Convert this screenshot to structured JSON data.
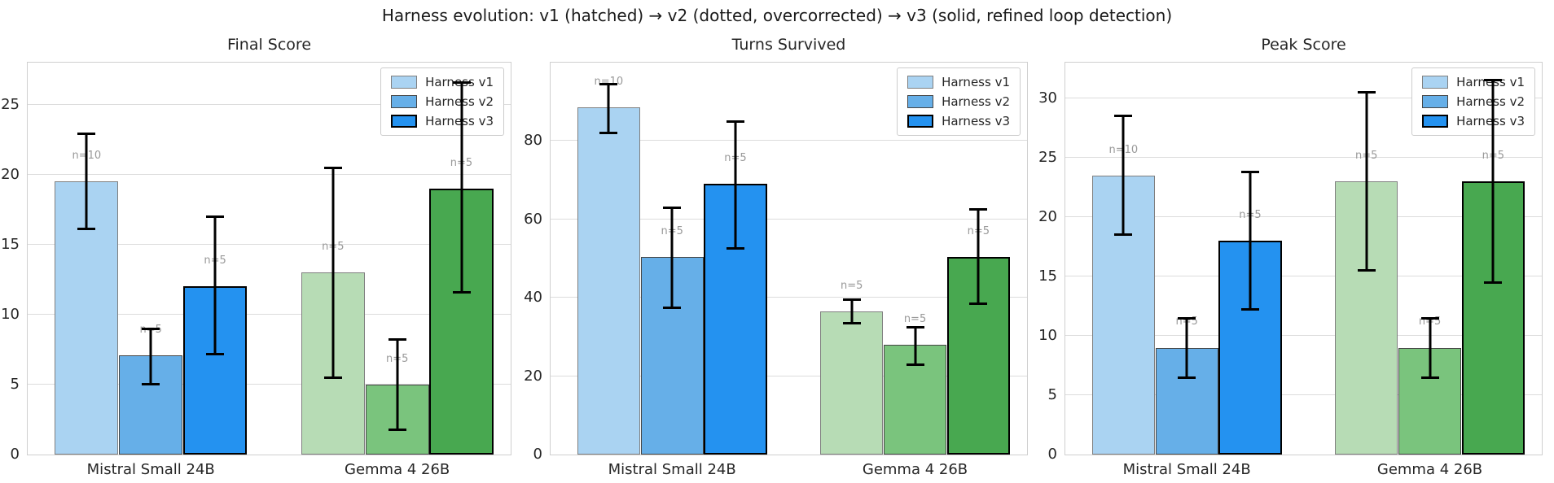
{
  "figure": {
    "title": "Harness evolution: v1 (hatched) → v2 (dotted, overcorrected) → v3 (solid, refined loop detection)",
    "background": "#ffffff"
  },
  "legend": {
    "labels": [
      "Harness v1",
      "Harness v2",
      "Harness v3"
    ],
    "position": "upper right"
  },
  "style": {
    "mistral_fills": [
      "#aad3f2",
      "#66afe8",
      "#2492f0"
    ],
    "gemma_fills": [
      "#b7dcb5",
      "#7ac47d",
      "#48a850"
    ],
    "hatch_colors": [
      "#6b7f93",
      "#7e947c"
    ],
    "dot_color": "#1a1a1a",
    "edge_colors": [
      "#7f7f7f",
      "#454545",
      "#000000"
    ],
    "patterns": [
      "hatch",
      "dots",
      "solid"
    ],
    "grid_color": "#dcdcdc",
    "spine_color": "#cfcfcf",
    "errorbar_color": "#000000",
    "n_label_color": "#999999"
  },
  "chart_data": [
    {
      "type": "bar",
      "title": "Final Score",
      "categories": [
        "Mistral Small 24B",
        "Gemma 4 26B"
      ],
      "yticks": [
        0,
        5,
        10,
        15,
        20,
        25
      ],
      "ylim": [
        0,
        28
      ],
      "grid": true,
      "legend_position": "upper right",
      "series": [
        {
          "name": "Harness v1",
          "values": [
            19.5,
            13.0
          ],
          "err_low": [
            16.1,
            5.5
          ],
          "err_high": [
            22.9,
            20.5
          ],
          "n_labels": [
            "n=10",
            "n=5"
          ]
        },
        {
          "name": "Harness v2",
          "values": [
            7.1,
            5.0
          ],
          "err_low": [
            5.0,
            1.8
          ],
          "err_high": [
            9.0,
            8.2
          ],
          "n_labels": [
            "n=5",
            "n=5"
          ]
        },
        {
          "name": "Harness v3",
          "values": [
            12.0,
            19.0
          ],
          "err_low": [
            7.2,
            11.6
          ],
          "err_high": [
            17.0,
            26.6
          ],
          "n_labels": [
            "n=5",
            "n=5"
          ]
        }
      ]
    },
    {
      "type": "bar",
      "title": "Turns Survived",
      "categories": [
        "Mistral Small 24B",
        "Gemma 4 26B"
      ],
      "yticks": [
        0,
        20,
        40,
        60,
        80
      ],
      "ylim": [
        0,
        100
      ],
      "grid": true,
      "legend_position": "upper right",
      "series": [
        {
          "name": "Harness v1",
          "values": [
            88.5,
            36.5
          ],
          "err_low": [
            82.0,
            33.5
          ],
          "err_high": [
            94.5,
            39.5
          ],
          "n_labels": [
            "n=10",
            "n=5"
          ]
        },
        {
          "name": "Harness v2",
          "values": [
            50.5,
            28.0
          ],
          "err_low": [
            37.5,
            23.0
          ],
          "err_high": [
            63.0,
            32.5
          ],
          "n_labels": [
            "n=5",
            "n=5"
          ]
        },
        {
          "name": "Harness v3",
          "values": [
            69.0,
            50.5
          ],
          "err_low": [
            52.5,
            38.5
          ],
          "err_high": [
            85.0,
            62.5
          ],
          "n_labels": [
            "n=5",
            "n=5"
          ]
        }
      ]
    },
    {
      "type": "bar",
      "title": "Peak Score",
      "categories": [
        "Mistral Small 24B",
        "Gemma 4 26B"
      ],
      "yticks": [
        0,
        5,
        10,
        15,
        20,
        25,
        30
      ],
      "ylim": [
        0,
        33
      ],
      "grid": true,
      "legend_position": "upper right",
      "series": [
        {
          "name": "Harness v1",
          "values": [
            23.5,
            23.0
          ],
          "err_low": [
            18.5,
            15.5
          ],
          "err_high": [
            28.5,
            30.5
          ],
          "n_labels": [
            "n=10",
            "n=5"
          ]
        },
        {
          "name": "Harness v2",
          "values": [
            9.0,
            9.0
          ],
          "err_low": [
            6.5,
            6.5
          ],
          "err_high": [
            11.5,
            11.5
          ],
          "n_labels": [
            "n=5",
            "n=5"
          ]
        },
        {
          "name": "Harness v3",
          "values": [
            18.0,
            23.0
          ],
          "err_low": [
            12.2,
            14.5
          ],
          "err_high": [
            23.8,
            31.5
          ],
          "n_labels": [
            "n=5",
            "n=5"
          ]
        }
      ]
    }
  ]
}
